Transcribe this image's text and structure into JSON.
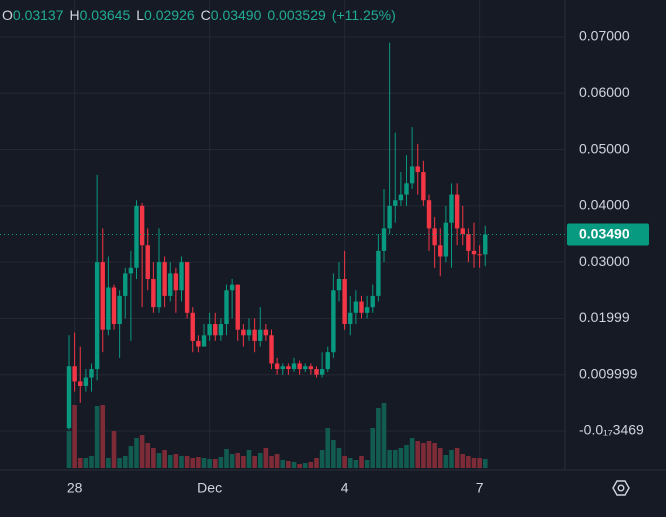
{
  "header": {
    "open_label": "O",
    "open": "0.03137",
    "high_label": "H",
    "high": "0.03645",
    "low_label": "L",
    "low": "0.02926",
    "close_label": "C",
    "close": "0.03490",
    "change": "0.003529",
    "change_pct": "(+11.25%)"
  },
  "chart_data": {
    "type": "candlestick",
    "categories": [
      null,
      "28",
      null,
      null,
      null,
      null,
      null,
      null,
      null,
      null,
      null,
      null,
      null,
      null,
      null,
      null,
      null,
      null,
      null,
      null,
      null,
      null,
      null,
      null,
      null,
      "Dec",
      null,
      null,
      null,
      null,
      null,
      null,
      null,
      null,
      null,
      null,
      null,
      null,
      null,
      null,
      null,
      null,
      null,
      null,
      null,
      null,
      null,
      null,
      null,
      "4",
      null,
      null,
      null,
      null,
      null,
      null,
      null,
      null,
      null,
      null,
      null,
      null,
      null,
      null,
      null,
      null,
      null,
      null,
      null,
      null,
      null,
      null,
      null,
      "7",
      null
    ],
    "open": [
      0.0005,
      0.0115,
      0.0088,
      0.008,
      0.0095,
      0.011,
      0.03,
      0.018,
      0.0255,
      0.019,
      0.024,
      0.028,
      0.029,
      0.04,
      0.033,
      0.027,
      0.022,
      0.03,
      0.024,
      0.028,
      0.025,
      0.03,
      0.021,
      0.016,
      0.015,
      0.017,
      0.019,
      0.017,
      0.019,
      0.025,
      0.026,
      0.018,
      0.017,
      0.018,
      0.016,
      0.018,
      0.017,
      0.012,
      0.011,
      0.0115,
      0.011,
      0.012,
      0.011,
      0.0115,
      0.011,
      0.01,
      0.011,
      0.014,
      0.025,
      0.027,
      0.019,
      0.021,
      0.023,
      0.021,
      0.022,
      0.024,
      0.032,
      0.036,
      0.04,
      0.041,
      0.042,
      0.044,
      0.047,
      0.046,
      0.041,
      0.036,
      0.033,
      0.031,
      0.037,
      0.042,
      0.036,
      0.035,
      0.032,
      0.0314,
      0.03137
    ],
    "high": [
      0.017,
      0.0175,
      0.015,
      0.011,
      0.012,
      0.0455,
      0.036,
      0.031,
      0.026,
      0.025,
      0.029,
      0.032,
      0.041,
      0.0405,
      0.036,
      0.03,
      0.036,
      0.031,
      0.03,
      0.029,
      0.031,
      0.03,
      0.022,
      0.017,
      0.019,
      0.021,
      0.021,
      0.02,
      0.026,
      0.027,
      0.026,
      0.019,
      0.02,
      0.02,
      0.022,
      0.019,
      0.018,
      0.013,
      0.012,
      0.012,
      0.013,
      0.0125,
      0.012,
      0.012,
      0.0115,
      0.014,
      0.015,
      0.028,
      0.03,
      0.032,
      0.024,
      0.025,
      0.024,
      0.024,
      0.026,
      0.035,
      0.043,
      0.069,
      0.053,
      0.046,
      0.049,
      0.054,
      0.051,
      0.048,
      0.042,
      0.038,
      0.036,
      0.04,
      0.044,
      0.044,
      0.04,
      0.036,
      0.037,
      0.033,
      0.03645
    ],
    "low": [
      0.0002,
      0.007,
      0.005,
      0.007,
      0.007,
      0.009,
      0.014,
      0.017,
      0.018,
      0.013,
      0.02,
      0.016,
      0.027,
      0.022,
      0.025,
      0.021,
      0.021,
      0.022,
      0.023,
      0.021,
      0.023,
      0.02,
      0.014,
      0.014,
      0.015,
      0.016,
      0.016,
      0.016,
      0.017,
      0.02,
      0.016,
      0.015,
      0.016,
      0.014,
      0.015,
      0.016,
      0.011,
      0.01,
      0.01,
      0.01,
      0.0105,
      0.01,
      0.0105,
      0.01,
      0.0095,
      0.0095,
      0.0105,
      0.013,
      0.023,
      0.018,
      0.017,
      0.019,
      0.02,
      0.02,
      0.021,
      0.023,
      0.03,
      0.035,
      0.037,
      0.04,
      0.04,
      0.043,
      0.042,
      0.04,
      0.032,
      0.029,
      0.0275,
      0.03,
      0.029,
      0.033,
      0.033,
      0.03,
      0.029,
      0.029,
      0.02926
    ],
    "close": [
      0.0115,
      0.0088,
      0.008,
      0.0095,
      0.011,
      0.03,
      0.018,
      0.0255,
      0.019,
      0.024,
      0.028,
      0.029,
      0.04,
      0.033,
      0.027,
      0.022,
      0.03,
      0.024,
      0.028,
      0.025,
      0.03,
      0.021,
      0.016,
      0.015,
      0.017,
      0.019,
      0.017,
      0.019,
      0.025,
      0.026,
      0.018,
      0.017,
      0.018,
      0.016,
      0.018,
      0.017,
      0.012,
      0.011,
      0.0115,
      0.011,
      0.012,
      0.011,
      0.0115,
      0.011,
      0.01,
      0.011,
      0.014,
      0.025,
      0.027,
      0.019,
      0.021,
      0.023,
      0.021,
      0.022,
      0.024,
      0.032,
      0.036,
      0.04,
      0.041,
      0.042,
      0.044,
      0.047,
      0.046,
      0.041,
      0.036,
      0.033,
      0.031,
      0.037,
      0.042,
      0.036,
      0.035,
      0.032,
      0.0314,
      0.03137,
      0.0349
    ],
    "volume": [
      37,
      63,
      10,
      10,
      12,
      62,
      63,
      10,
      37,
      10,
      12,
      22,
      30,
      33,
      25,
      20,
      15,
      18,
      13,
      14,
      12,
      12,
      10,
      11,
      10,
      9,
      9,
      11,
      19,
      14,
      15,
      12,
      18,
      12,
      15,
      20,
      12,
      14,
      8,
      7,
      6,
      4,
      5,
      6,
      10,
      18,
      40,
      28,
      20,
      12,
      10,
      8,
      12,
      8,
      40,
      60,
      65,
      18,
      18,
      20,
      23,
      30,
      27,
      25,
      27,
      25,
      20,
      13,
      18,
      20,
      14,
      12,
      10,
      10,
      9
    ],
    "up_color": "#089981",
    "down_color": "#f23645",
    "volume_up_color": "#125b51",
    "volume_down_color": "#7c2b37",
    "last_price_label": "0.03490",
    "ylim": [
      -0.00693,
      0.07657
    ],
    "yticks": [
      {
        "value": 0.07,
        "label": "0.07000"
      },
      {
        "value": 0.06,
        "label": "0.06000"
      },
      {
        "value": 0.05,
        "label": "0.05000"
      },
      {
        "value": 0.04,
        "label": "0.04000"
      },
      {
        "value": 0.03,
        "label": "0.03000"
      },
      {
        "value": 0.01999,
        "label": "0.01999"
      },
      {
        "value": 0.009999,
        "label": "0.009999"
      },
      {
        "value": -3.469e-18,
        "label": "-0.0₁₇3469"
      }
    ],
    "grid": true
  }
}
